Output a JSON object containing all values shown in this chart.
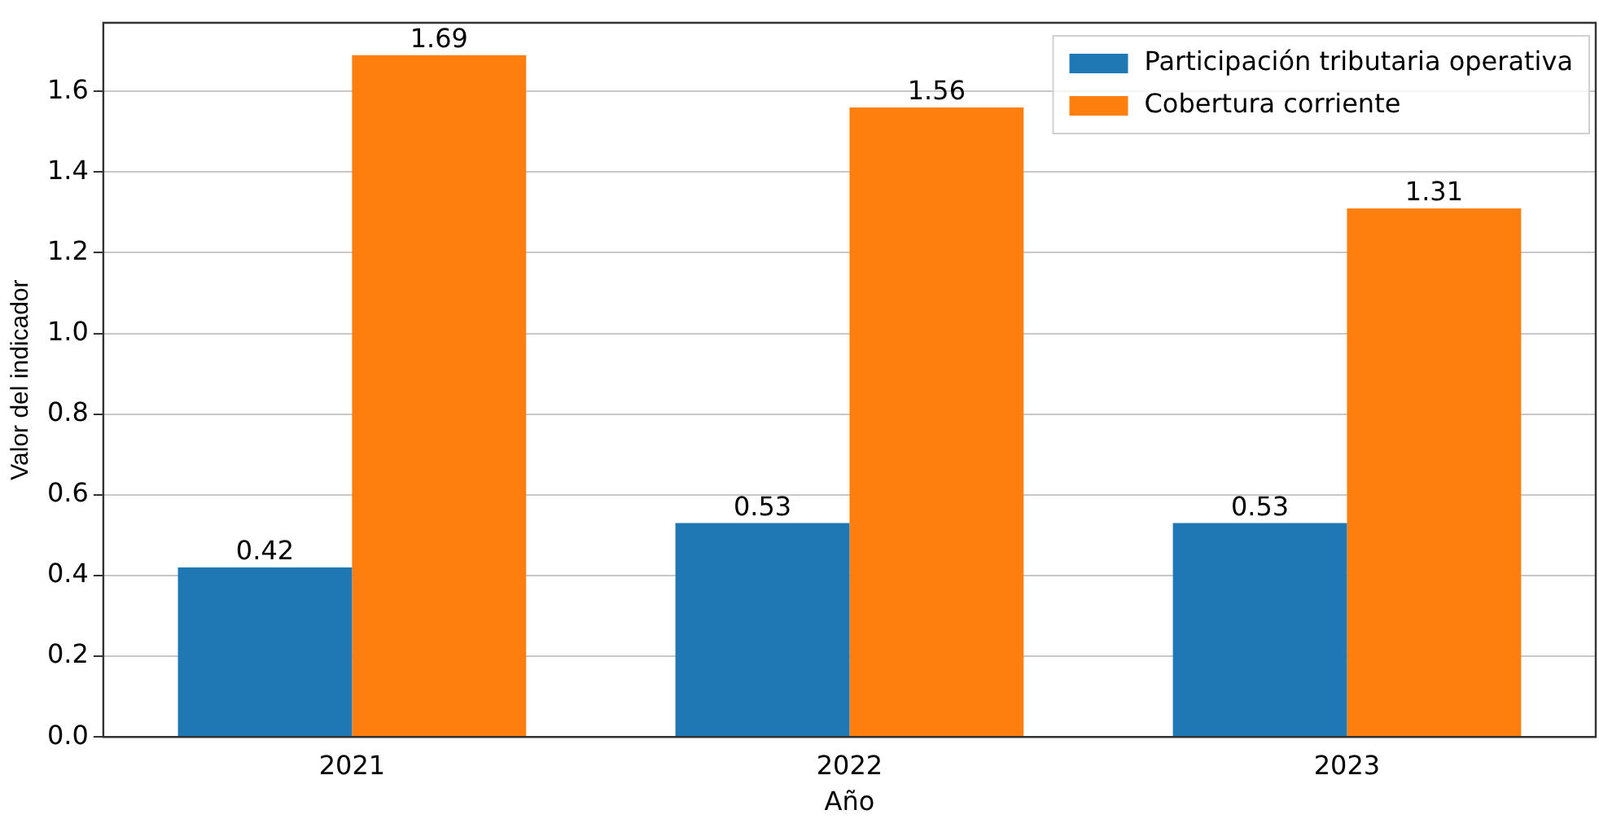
{
  "chart_data": {
    "type": "bar",
    "xlabel": "Año",
    "ylabel": "Valor del indicador",
    "categories": [
      "2021",
      "2022",
      "2023"
    ],
    "series": [
      {
        "name": "Participación tributaria operativa",
        "color": "#1f77b4",
        "values": [
          0.42,
          0.53,
          0.53
        ]
      },
      {
        "name": "Cobertura corriente",
        "color": "#ff7f0e",
        "values": [
          1.69,
          1.56,
          1.31
        ]
      }
    ],
    "ylim": [
      0,
      1.77
    ],
    "yticks": [
      {
        "value": 0,
        "label": "0.0"
      },
      0.2,
      0.4,
      0.6,
      0.8,
      {
        "value": 1,
        "label": "1.0"
      },
      1.2,
      1.4,
      1.6
    ],
    "grid": "y",
    "legend": "top right",
    "data_labels": true
  }
}
